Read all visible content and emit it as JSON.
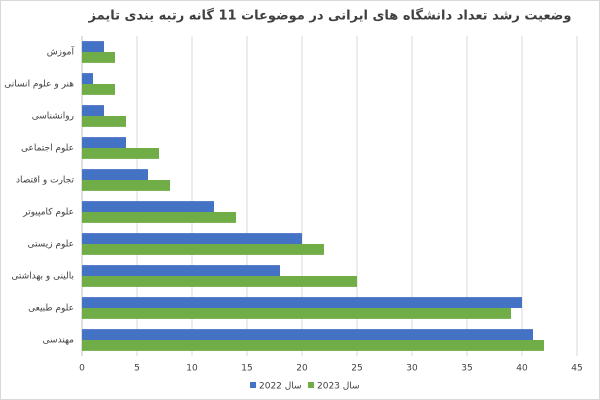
{
  "chart_data": {
    "type": "bar",
    "orientation": "horizontal",
    "title": "وضعیت رشد تعداد دانشگاه های ایرانی در موضوعات 11 گانه رتبه بندی تایمز",
    "categories": [
      "آموزش",
      "هنر و علوم انسانی",
      "روانشناسی",
      "علوم اجتماعی",
      "تجارت و اقتصاد",
      "علوم کامپیوتر",
      "علوم زیستی",
      "بالینی و بهداشتی",
      "علوم طبیعی",
      "مهندسی"
    ],
    "series": [
      {
        "name": "سال 2022",
        "color": "#4472c4",
        "values": [
          2,
          1,
          2,
          4,
          6,
          12,
          20,
          18,
          40,
          41
        ]
      },
      {
        "name": "سال 2023",
        "color": "#70ad47",
        "values": [
          3,
          3,
          4,
          7,
          8,
          14,
          22,
          25,
          39,
          42
        ]
      }
    ],
    "xlim": [
      0,
      45
    ],
    "xticks": [
      0,
      5,
      10,
      15,
      20,
      25,
      30,
      35,
      40,
      45
    ],
    "grid": true,
    "legend": "bottom"
  }
}
